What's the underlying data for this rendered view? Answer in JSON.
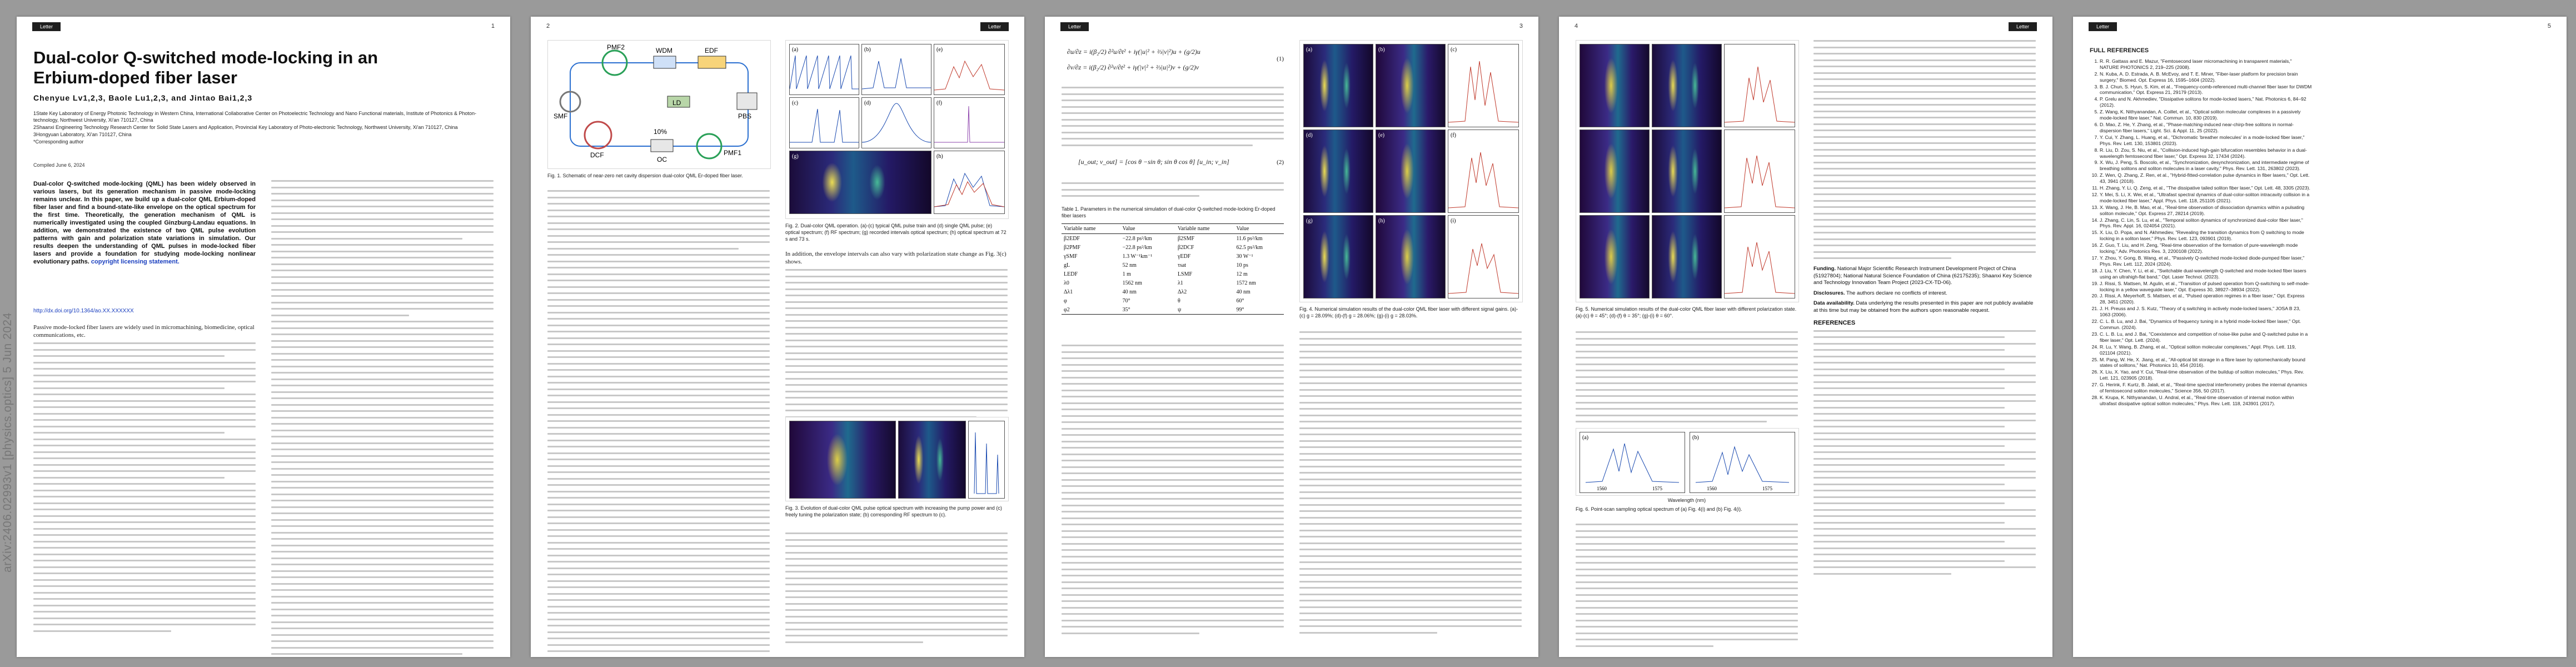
{
  "arxiv_stamp": "arXiv:2406.02993v1  [physics.optics]  5 Jun 2024",
  "header_tag": "Letter",
  "page_numbers": [
    "1",
    "2",
    "3",
    "4",
    "5"
  ],
  "page1": {
    "title_line1": "Dual-color Q-switched mode-locking in an",
    "title_line2": "Erbium-doped fiber laser",
    "authors": "Chenyue Lv1,2,3, Baole Lu1,2,3, and Jintao Bai1,2,3",
    "affiliations": [
      "1State Key Laboratory of Energy Photonic Technology in Western China, International Collaborative Center on Photoelectric Technology and Nano Functional materials, Institute of Photonics & Photon-technology, Northwest University, Xi'an 710127, China",
      "2Shaanxi Engineering Technology Research Center for Solid State Lasers and Application, Provincial Key Laboratory of Photo-electronic Technology, Northwest University, Xi'an 710127, China",
      "3Hongyuan Laboratory, Xi'an 710127, China",
      "*Corresponding author"
    ],
    "compiled": "Compiled June 6, 2024",
    "abstract": "Dual-color Q-switched mode-locking (QML) has been widely observed in various lasers, but its generation mechanism in passive mode-locking remains unclear. In this paper, we build up a dual-color QML Erbium-doped fiber laser and find a bound-state-like envelope on the optical spectrum for the first time. Theoretically, the generation mechanism of QML is numerically investigated using the coupled Ginzburg-Landau equations. In addition, we demonstrated the existence of two QML pulse evolution patterns with gain and polarization state variations in simulation. Our results deepen the understanding of QML pulses in mode-locked fiber lasers and provide a foundation for studying mode-locking nonlinear evolutionary paths.",
    "copyright_link": "copyright licensing statement.",
    "doi": "http://dx.doi.org/10.1364/ao.XX.XXXXXX",
    "intro_start": "Passive mode-locked fiber lasers are widely used in micromachining, biomedicine, optical communications, etc."
  },
  "page2": {
    "fig1_caption": "Fig. 1. Schematic of near-zero net cavity dispersion dual-color QML Er-doped fiber laser.",
    "fig1_labels": [
      "PMF2",
      "LD",
      "WDM",
      "EDF",
      "PBS",
      "10%",
      "DCF",
      "OC",
      "PMF1",
      "SMF"
    ],
    "fig2_caption": "Fig. 2. Dual-color QML operation. (a)-(c) typical QML pulse train and (d) single QML pulse; (e) optical spectrum; (f) RF spectrum; (g) recorded intervals optical spectrum; (h) optical spectrum at 72 s and 73 s.",
    "fig2_panel_labels": [
      "(a)",
      "(b)",
      "(c)",
      "(d)",
      "(e)",
      "(f)",
      "(g)",
      "(h)"
    ],
    "col2_text": "In addition, the envelope intervals can also vary with polarization state change as Fig. 3(c) shows.",
    "fig3_caption": "Fig. 3. Evolution of dual-color QML pulse optical spectrum with increasing the pump power and (c) freely tuning the polarization state; (b) corresponding RF spectrum to (c)."
  },
  "page3": {
    "eq_number_1": "(1)",
    "eq_number_2": "(2)",
    "table_caption": "Table 1. Parameters in the numerical simulation of dual-color Q-switched mode-locking Er-doped fiber lasers",
    "table_headers": [
      "Variable name",
      "Value",
      "Variable name",
      "Value"
    ],
    "table_rows": [
      [
        "β2EDF",
        "−22.8 ps²/km",
        "β2SMF",
        "11.6 ps²/km"
      ],
      [
        "β2PMF",
        "−22.8 ps²/km",
        "β2DCF",
        "62.5 ps²/km"
      ],
      [
        "γSMF",
        "1.3 W⁻¹km⁻¹",
        "γEDF",
        "30 W⁻¹"
      ],
      [
        "gL",
        "52 nm",
        "τsat",
        "10 ps"
      ],
      [
        "LEDF",
        "1 m",
        "LSMF",
        "12 m"
      ],
      [
        "λ0",
        "1562 nm",
        "λ1",
        "1572 nm"
      ],
      [
        "Δλ1",
        "40 nm",
        "Δλ2",
        "40 nm"
      ],
      [
        "φ",
        "70°",
        "θ",
        "60°"
      ],
      [
        "φ2",
        "35°",
        "ψ",
        "99°"
      ]
    ],
    "fig4_caption": "Fig. 4. Numerical simulation results of the dual-color QML fiber laser with different signal gains. (a)-(c) g = 28.09%; (d)-(f) g = 28.06%; (g)-(i) g = 28.03%.",
    "fig4_panel_labels": [
      "(a)",
      "(b)",
      "(c)",
      "(d)",
      "(e)",
      "(f)",
      "(g)",
      "(h)",
      "(i)"
    ]
  },
  "page4": {
    "fig5_caption": "Fig. 5. Numerical simulation results of the dual-color QML fiber laser with different polarization state. (a)-(c) θ = 45°; (d)-(f) θ = 35°; (g)-(i) θ = 60°.",
    "fig6_caption": "Fig. 6. Point-scan sampling optical spectrum of (a) Fig. 4(i) and (b) Fig. 4(i).",
    "fig6_panel_labels": [
      "(a)",
      "(b)"
    ],
    "fig6_xlabel": "Wavelength (nm)",
    "fig6_ticks": [
      "1560",
      "1575",
      "1560",
      "1575"
    ],
    "funding_head": "Funding.",
    "funding": "National Major Scientific Research Instrument Development Project of China (51927804); National Natural Science Foundation of China (62175235); Shaanxi Key Science and Technology Innovation Team Project (2023-CX-TD-06).",
    "disclosures_head": "Disclosures.",
    "disclosures": "The authors declare no conflicts of interest.",
    "data_head": "Data availability.",
    "data": "Data underlying the results presented in this paper are not publicly available at this time but may be obtained from the authors upon reasonable request.",
    "references_head": "REFERENCES"
  },
  "page5": {
    "references_head": "FULL REFERENCES",
    "references": [
      "R. R. Gattass and E. Mazur, \"Femtosecond laser micromachining in transparent materials,\" NATURE PHOTONICS 2, 219–225 (2008).",
      "N. Kuba, A. D. Estrada, A. B. McEvoy, and T. E. Miner, \"Fiber-laser platform for precision brain surgery,\" Biomed. Opt. Express 16, 1595–1604 (2022).",
      "B. J. Chun, S. Hyun, S. Kim, et al., \"Frequency-comb-referenced multi-channel fiber laser for DWDM communication,\" Opt. Express 21, 29179 (2013).",
      "P. Grelu and N. Akhmediev, \"Dissipative solitons for mode-locked lasers,\" Nat. Photonics 6, 84–92 (2012).",
      "Z. Wang, K. Nithyanandan, A. Coillet, et al., \"Optical soliton molecular complexes in a passively mode-locked fibre laser,\" Nat. Commun. 10, 830 (2019).",
      "D. Mao, Z. He, Y. Zhang, et al., \"Phase-matching-induced near-chirp-free solitons in normal-dispersion fiber lasers,\" Light. Sci. & Appl. 11, 25 (2022).",
      "Y. Cui, Y. Zhang, L. Huang, et al., \"Dichromatic 'breather molecules' in a mode-locked fiber laser,\" Phys. Rev. Lett. 130, 153801 (2023).",
      "R. Liu, D. Zou, S. Niu, et al., \"Collision-induced high-gain bifurcation resembles behavior in a dual-wavelength femtosecond fiber laser,\" Opt. Express 32, 17434 (2024).",
      "X. Wu, J. Peng, S. Boscolo, et al., \"Synchronization, desynchronization, and intermediate regime of breathing solitons and soliton molecules in a laser cavity,\" Phys. Rev. Lett. 131, 263802 (2023).",
      "Z. Wen, Q. Zhang, Z. Ren, et al., \"Hybrid-fitted-correlation pulse dynamics in fiber lasers,\" Opt. Lett. 43, 3941 (2018).",
      "H. Zhang, Y. Li, Q. Zeng, et al., \"The dissipative tailed soliton fiber laser,\" Opt. Lett. 48, 3305 (2023).",
      "Y. Mei, S. Li, X. Wei, et al., \"Ultrafast spectral dynamics of dual-color-soliton intracavity collision in a mode-locked fiber laser,\" Appl. Phys. Lett. 118, 251105 (2021).",
      "X. Wang, J. He, B. Mao, et al., \"Real-time observation of dissociation dynamics within a pulsating soliton molecule,\" Opt. Express 27, 28214 (2019).",
      "J. Zhang, C. Lin, S. Lu, et al., \"Temporal soliton dynamics of synchronized dual-color fiber laser,\" Phys. Rev. Appl. 16, 024054 (2021).",
      "X. Liu, D. Popa, and N. Akhmediev, \"Revealing the transition dynamics from Q switching to mode locking in a soliton laser,\" Phys. Rev. Lett. 123, 093901 (2019).",
      "Z. Guo, T. Liu, and H. Zeng, \"Real-time observation of the formation of pure-wavelength mode locking,\" Adv. Photonics Res. 3, 2200108 (2022).",
      "Y. Zhou, Y. Gong, B. Wang, et al., \"Passively Q-switched mode-locked diode-pumped fiber laser,\" Phys. Rev. Lett. 112, 2024 (2024).",
      "J. Liu, Y. Chen, Y. Li, et al., \"Switchable dual-wavelength Q-switched and mode-locked fiber lasers using an ultrahigh-flat band,\" Opt. Laser Technol. (2023).",
      "J. Rissi, S. Mattsen, M. Agulin, et al., \"Transition of pulsed operation from Q-switching to self-mode-locking in a yellow waveguide laser,\" Opt. Express 30, 38927–38934 (2022).",
      "J. Rissi, A. Meyerhoff, S. Mattsen, et al., \"Pulsed operation regimes in a fiber laser,\" Opt. Express 28, 3451 (2020).",
      "J. H. Preuss and J. S. Kutz, \"Theory of q switching in actively mode-locked lasers,\" JOSA B 23, 1063 (2006).",
      "C. L. B. Lu, and J. Bai, \"Dynamics of frequency tuning in a hybrid mode-locked fiber laser,\" Opt. Commun. (2024).",
      "C. L. B. Lu, and J. Bai, \"Coexistence and competition of noise-like pulse and Q-switched pulse in a fiber laser,\" Opt. Lett. (2024).",
      "R. Lu, Y. Wang, B. Zhang, et al., \"Optical soliton molecular complexes,\" Appl. Phys. Lett. 119, 021104 (2021).",
      "M. Pang, W. He, X. Jiang, et al., \"All-optical bit storage in a fibre laser by optomechanically bound states of solitons,\" Nat. Photonics 10, 454 (2016).",
      "X. Liu, X. Yao, and Y. Cui, \"Real-time observation of the buildup of soliton molecules,\" Phys. Rev. Lett. 121, 023905 (2018).",
      "G. Herink, F. Kurtz, B. Jalali, et al., \"Real-time spectral interferometry probes the internal dynamics of femtosecond soliton molecules,\" Science 356, 50 (2017).",
      "K. Krupa, K. Nithyanandan, U. Andral, et al., \"Real-time observation of internal motion within ultrafast dissipative optical soliton molecules,\" Phys. Rev. Lett. 118, 243901 (2017)."
    ]
  }
}
